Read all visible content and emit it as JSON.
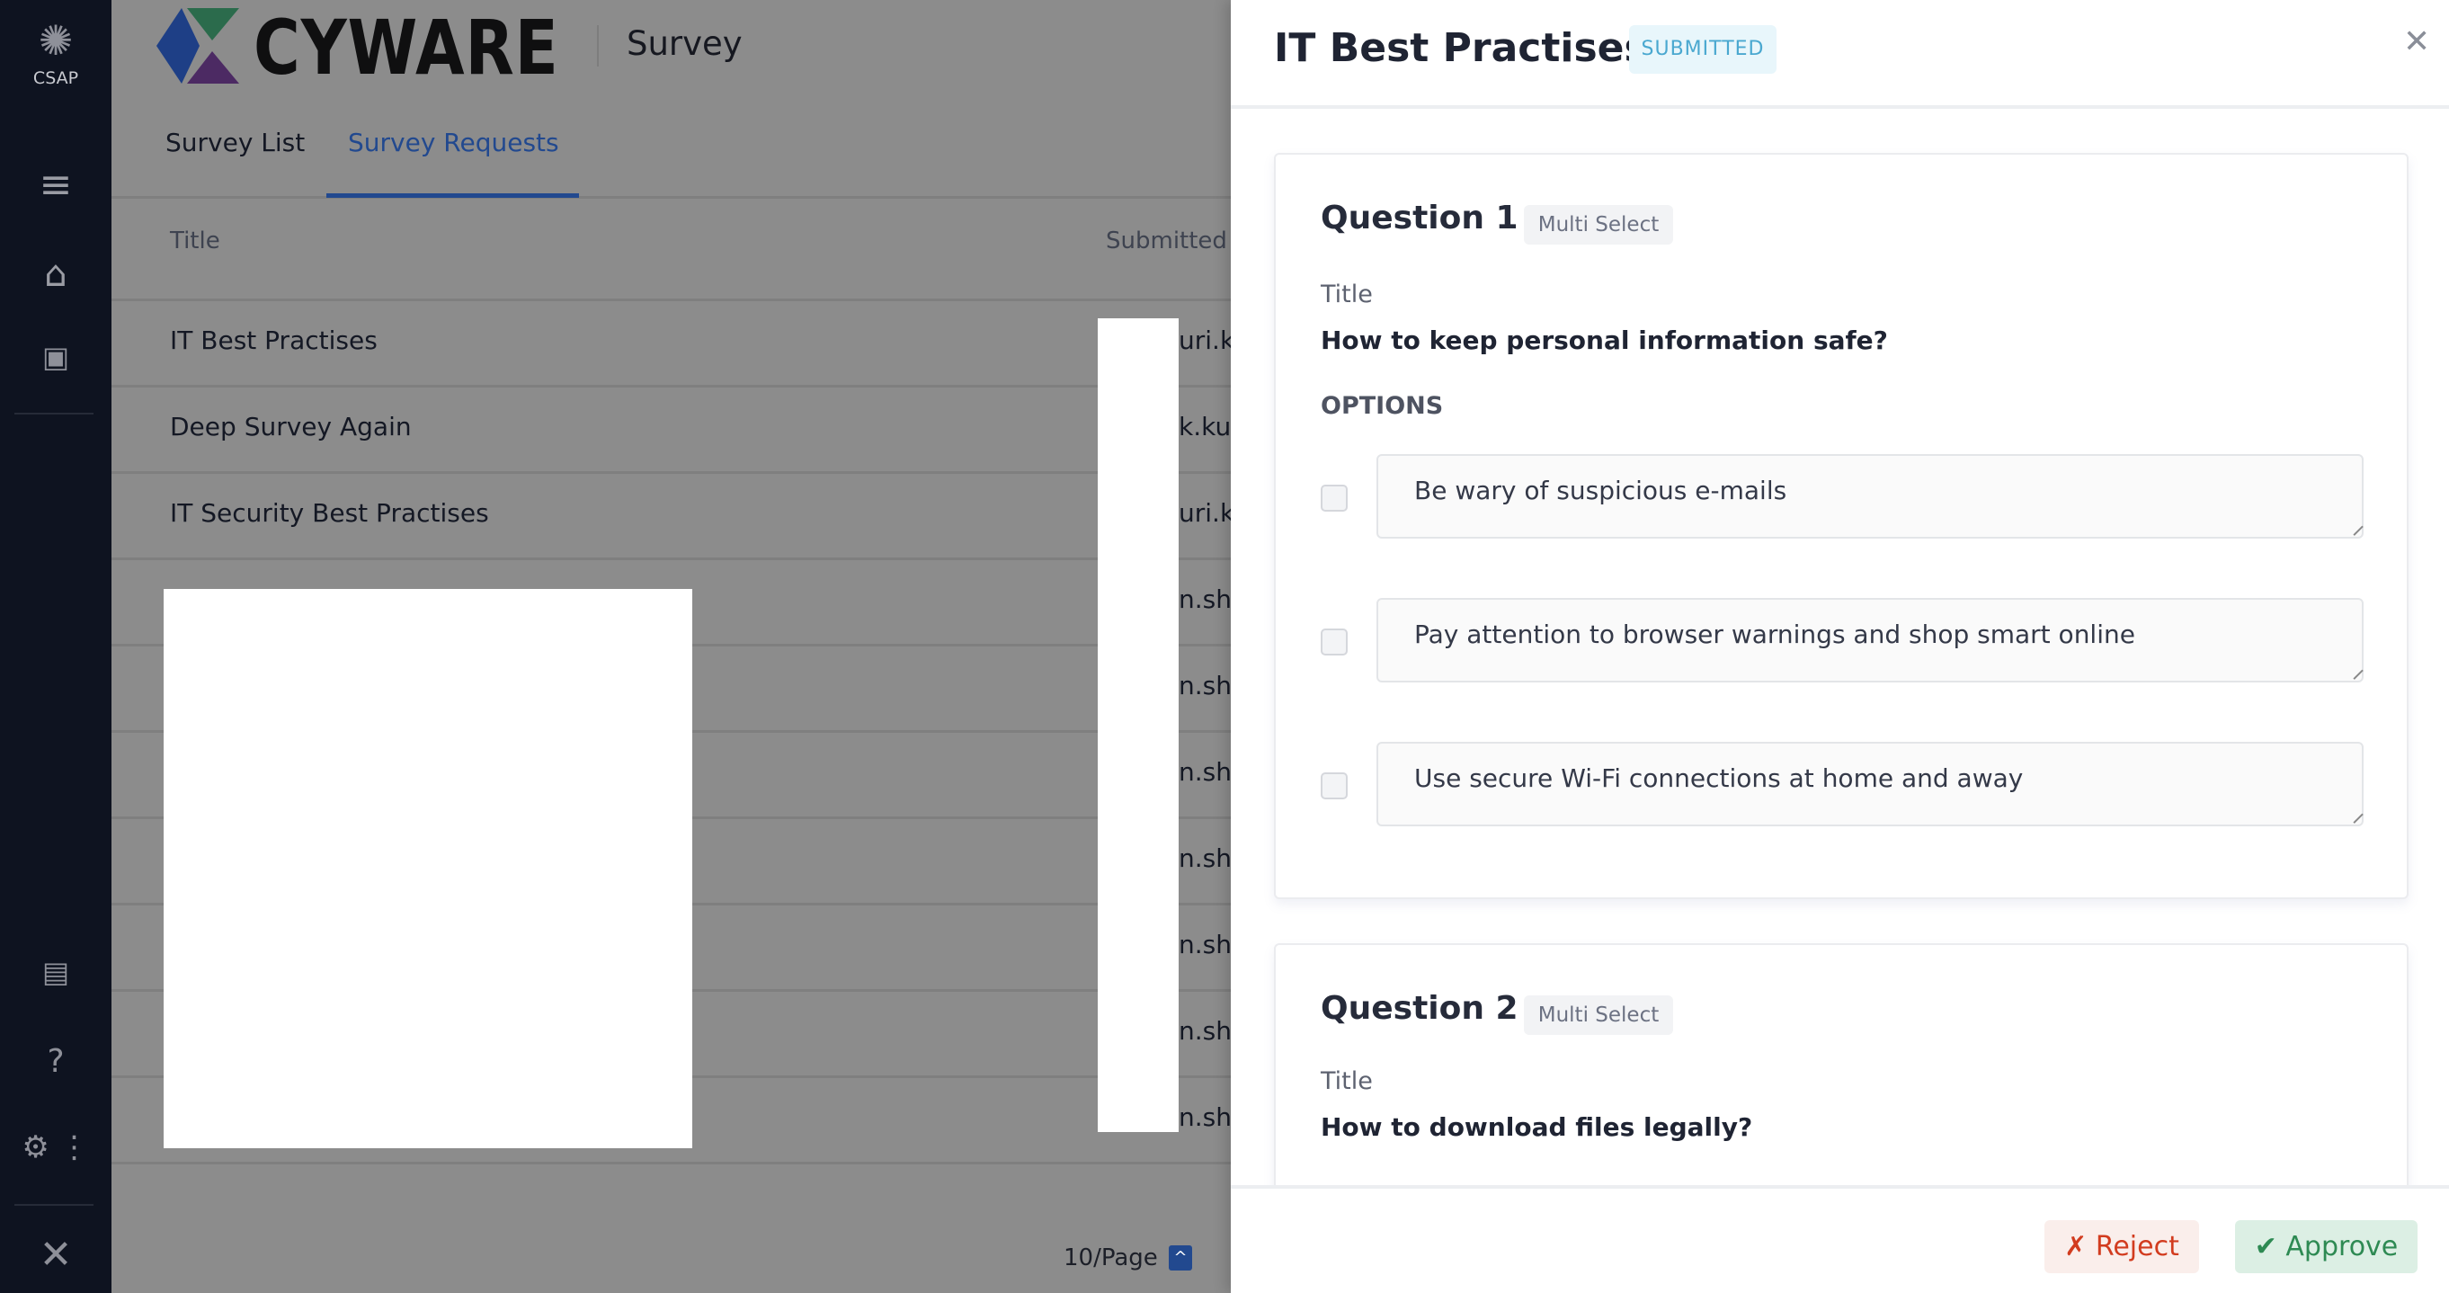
{
  "sidebar": {
    "app_label": "CSAP",
    "icons": [
      "atom-logo-icon",
      "menu-icon",
      "home-icon",
      "dashboard-icon",
      "reports-icon",
      "help-icon",
      "user-settings-icon",
      "more-vertical-icon",
      "cyware-logo-icon"
    ]
  },
  "header": {
    "brand": "CYWARE",
    "module": "Survey"
  },
  "tabs": [
    {
      "label": "Survey List",
      "active": false
    },
    {
      "label": "Survey Requests",
      "active": true
    }
  ],
  "table": {
    "columns": [
      "Title",
      "Submitted"
    ],
    "rows": [
      {
        "title": "IT Best Practises",
        "submitted": "uri.ka"
      },
      {
        "title": "Deep Survey Again",
        "submitted": "k.kur"
      },
      {
        "title": "IT Security Best Practises",
        "submitted": "uri.ka"
      },
      {
        "title": "",
        "submitted": "n.sha"
      },
      {
        "title": "",
        "submitted": "n.sha"
      },
      {
        "title": "",
        "submitted": "n.sha"
      },
      {
        "title": "",
        "submitted": "n.sha"
      },
      {
        "title": "",
        "submitted": "n.sha"
      },
      {
        "title": "",
        "submitted": "n.sha"
      },
      {
        "title": "",
        "submitted": "n.sha"
      }
    ]
  },
  "pagination": {
    "page_size": "10/Page"
  },
  "panel": {
    "title": "IT Best Practises",
    "status": "SUBMITTED",
    "questions": [
      {
        "label": "Question 1",
        "type": "Multi Select",
        "title_label": "Title",
        "title": "How to keep personal information safe?",
        "options_label": "OPTIONS",
        "options": [
          "Be wary of suspicious e-mails",
          "Pay attention to browser warnings and shop smart online",
          "Use secure Wi-Fi connections at home and away"
        ]
      },
      {
        "label": "Question 2",
        "type": "Multi Select",
        "title_label": "Title",
        "title": "How to download files legally?"
      }
    ],
    "reject_label": "Reject",
    "approve_label": "Approve"
  },
  "colors": {
    "accent": "#2f5fae",
    "status": "#4aa8d0",
    "reject": "#d23c1f",
    "approve": "#2e8a53"
  }
}
